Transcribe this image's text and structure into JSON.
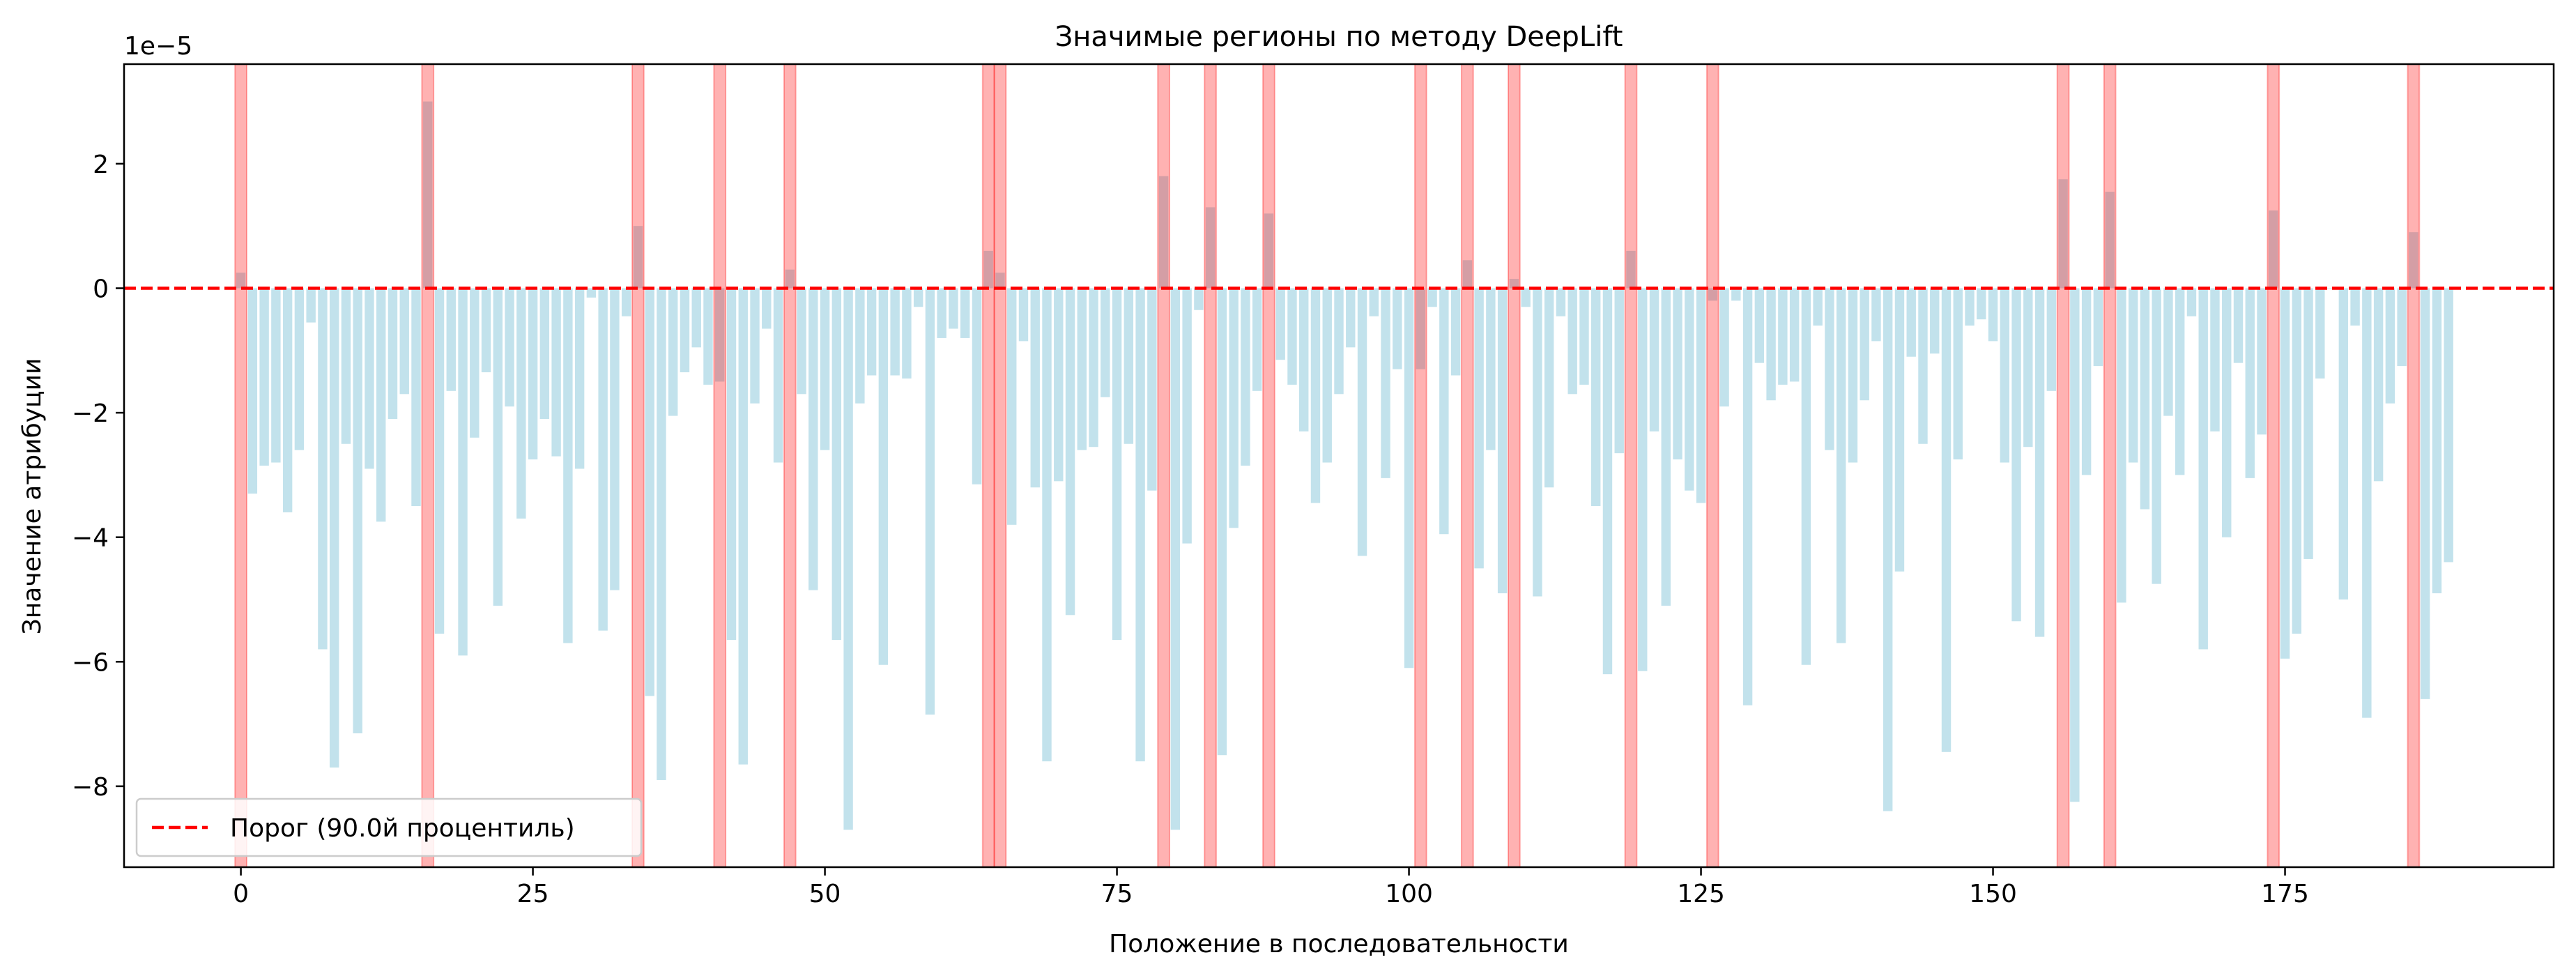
{
  "chart_data": {
    "type": "bar",
    "title": "Значимые регионы по методу DeepLift",
    "xlabel": "Положение в последовательности",
    "ylabel": "Значение атрибуции",
    "y_offset_label": "1e−5",
    "y_scale_factor": 1e-05,
    "xlim": [
      -10,
      198
    ],
    "ylim": [
      -9.3,
      3.6
    ],
    "xticks": [
      0,
      25,
      50,
      75,
      100,
      125,
      150,
      175
    ],
    "yticks": [
      -8,
      -6,
      -4,
      -2,
      0,
      2
    ],
    "bar_color": "#add8e6",
    "threshold": 0.0,
    "threshold_color": "#ff0000",
    "highlight_color": "#ff0000",
    "legend": {
      "label": "Порог (90.0й процентиль)",
      "placement": "lower left"
    },
    "significant_positions": [
      0,
      16,
      34,
      41,
      47,
      64,
      65,
      79,
      83,
      88,
      101,
      105,
      109,
      119,
      126,
      156,
      160,
      174,
      186
    ],
    "values": [
      0.25,
      -3.3,
      -2.85,
      -2.8,
      -3.6,
      -2.6,
      -0.55,
      -5.8,
      -7.7,
      -2.5,
      -7.15,
      -2.9,
      -3.75,
      -2.1,
      -1.7,
      -3.5,
      3.0,
      -5.55,
      -1.65,
      -5.9,
      -2.4,
      -1.35,
      -5.1,
      -1.9,
      -3.7,
      -2.75,
      -2.1,
      -2.7,
      -5.7,
      -2.9,
      -0.15,
      -5.5,
      -4.85,
      -0.45,
      1.0,
      -6.55,
      -7.9,
      -2.05,
      -1.35,
      -0.95,
      -1.55,
      -1.5,
      -5.65,
      -7.65,
      -1.85,
      -0.65,
      -2.8,
      0.3,
      -1.7,
      -4.85,
      -2.6,
      -5.65,
      -8.7,
      -1.85,
      -1.4,
      -6.05,
      -1.4,
      -1.45,
      -0.3,
      -6.85,
      -0.8,
      -0.65,
      -0.8,
      -3.15,
      0.6,
      0.25,
      -3.8,
      -0.85,
      -3.2,
      -7.6,
      -3.1,
      -5.25,
      -2.6,
      -2.55,
      -1.75,
      -5.65,
      -2.5,
      -7.6,
      -3.25,
      1.8,
      -8.7,
      -4.1,
      -0.35,
      1.3,
      -7.5,
      -3.85,
      -2.85,
      -1.65,
      1.2,
      -1.15,
      -1.55,
      -2.3,
      -3.45,
      -2.8,
      -1.7,
      -0.95,
      -4.3,
      -0.45,
      -3.05,
      -1.3,
      -6.1,
      -1.3,
      -0.3,
      -3.95,
      -1.4,
      0.45,
      -4.5,
      -2.6,
      -4.9,
      0.15,
      -0.3,
      -4.95,
      -3.2,
      -0.45,
      -1.7,
      -1.55,
      -3.5,
      -6.2,
      -2.65,
      0.6,
      -6.15,
      -2.3,
      -5.1,
      -2.75,
      -3.25,
      -3.45,
      -0.2,
      -1.9,
      -0.2,
      -6.7,
      -1.2,
      -1.8,
      -1.55,
      -1.5,
      -6.05,
      -0.6,
      -2.6,
      -5.7,
      -2.8,
      -1.8,
      -0.85,
      -8.4,
      -4.55,
      -1.1,
      -2.5,
      -1.05,
      -7.45,
      -2.75,
      -0.6,
      -0.5,
      -0.85,
      -2.8,
      -5.35,
      -2.55,
      -5.6,
      -1.65,
      1.75,
      -8.25,
      -3.0,
      -1.25,
      1.55,
      -5.05,
      -2.8,
      -3.55,
      -4.75,
      -2.05,
      -3.0,
      -0.45,
      -5.8,
      -2.3,
      -4.0,
      -1.2,
      -3.05,
      -2.35,
      1.25,
      -5.95,
      -5.55,
      -4.35,
      -1.45,
      0.0,
      -5.0,
      -0.6,
      -6.9,
      -3.1,
      -1.85,
      -1.25,
      0.9,
      -6.6,
      -4.9,
      -4.4
    ]
  }
}
